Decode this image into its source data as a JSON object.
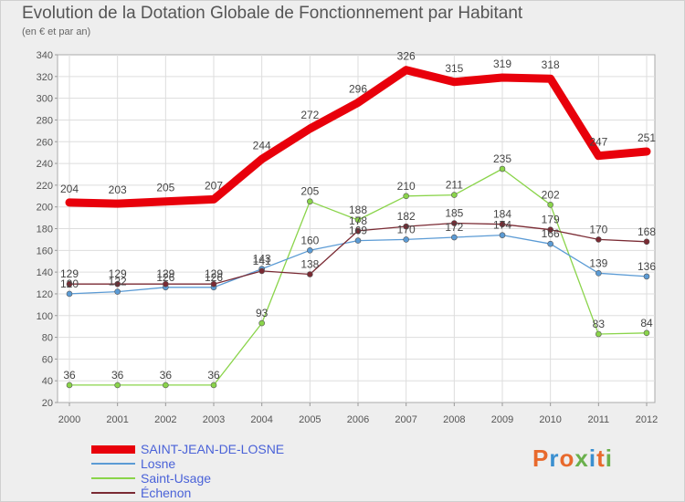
{
  "title": "Evolution de la Dotation Globale de Fonctionnement par Habitant",
  "subtitle": "(en € et par an)",
  "logo": {
    "text": "Proxiti",
    "colors": [
      "#e8692c",
      "#3a8fd0",
      "#e8692c",
      "#6ab04c",
      "#3a8fd0",
      "#e8692c",
      "#6ab04c"
    ]
  },
  "chart_data": {
    "type": "line",
    "title": "Evolution de la Dotation Globale de Fonctionnement par Habitant",
    "subtitle": "(en € et par an)",
    "xlabel": "",
    "ylabel": "",
    "x": [
      "2000",
      "2001",
      "2002",
      "2003",
      "2004",
      "2005",
      "2006",
      "2007",
      "2008",
      "2009",
      "2010",
      "2011",
      "2012"
    ],
    "ylim": [
      20,
      340
    ],
    "yticks": [
      20,
      40,
      60,
      80,
      100,
      120,
      140,
      160,
      180,
      200,
      220,
      240,
      260,
      280,
      300,
      320,
      340
    ],
    "grid": true,
    "legend_position": "bottom-left",
    "series": [
      {
        "name": "SAINT-JEAN-DE-LOSNE",
        "color": "#e8000b",
        "values": [
          204,
          203,
          205,
          207,
          244,
          272,
          296,
          326,
          315,
          319,
          318,
          247,
          251
        ]
      },
      {
        "name": "Losne",
        "color": "#5b9bd5",
        "values": [
          120,
          122,
          126,
          126,
          143,
          160,
          169,
          170,
          172,
          174,
          166,
          139,
          136
        ]
      },
      {
        "name": "Saint-Usage",
        "color": "#8ad44a",
        "values": [
          36,
          36,
          36,
          36,
          93,
          205,
          188,
          210,
          211,
          235,
          202,
          83,
          84
        ]
      },
      {
        "name": "Échenon",
        "color": "#7a2a33",
        "values": [
          129,
          129,
          129,
          129,
          141,
          138,
          178,
          182,
          185,
          184,
          179,
          170,
          168
        ]
      }
    ],
    "data_labels": [
      [
        "204",
        "203",
        "205",
        "207",
        "244",
        "272",
        "296",
        "326",
        "315",
        "319",
        "318",
        "247",
        "251"
      ],
      [
        "120",
        "122",
        "126",
        "126",
        "143",
        "160",
        "169",
        "170",
        "172",
        "174",
        "166",
        "139",
        "136"
      ],
      [
        "36",
        "36",
        "36",
        "36",
        "93",
        "205",
        "188",
        "210",
        "211",
        "235",
        "202",
        "83",
        "84"
      ],
      [
        "129",
        "129",
        "129",
        "129",
        "141",
        "138",
        "178",
        "182",
        "185",
        "184",
        "179",
        "170",
        "168"
      ]
    ]
  }
}
